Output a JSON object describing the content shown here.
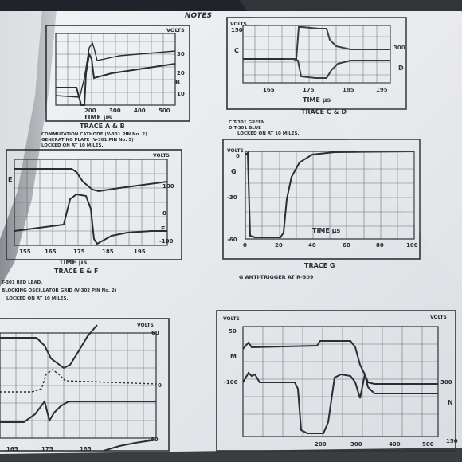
{
  "header_fragment": "NOTES",
  "panel_ab": {
    "units": "VOLTS",
    "y_ticks": [
      "30",
      "20",
      "10"
    ],
    "right_letter": "B",
    "x_ticks": [
      "200",
      "300",
      "400",
      "500"
    ],
    "axis_label": "TIME µs",
    "title": "TRACE A & B",
    "note_lines": [
      "COMMUTATION CATHODE (V-301 PIN No. 2)",
      "GENERATING PLATE (V-301 PIN No. 5)",
      "LOCKED ON AT 10 MILES."
    ]
  },
  "panel_cd": {
    "units": "VOLTS",
    "top_left": "150",
    "left_letter": "C",
    "right_value": "300",
    "right_letter": "D",
    "x_ticks": [
      "165",
      "175",
      "185",
      "195"
    ],
    "axis_label": "TIME µs",
    "title": "TRACE C & D",
    "legend": [
      "C  T-301 GREEN",
      "D  T-301 BLUE",
      "LOCKED ON AT 10 MILES."
    ]
  },
  "panel_ef": {
    "units": "VOLTS",
    "left_letter": "E",
    "right_ticks": [
      "100",
      "0",
      "-100"
    ],
    "right_letter": "F",
    "x_ticks": [
      "155",
      "165",
      "175",
      "185",
      "195"
    ],
    "axis_label": "TIME µs",
    "title": "TRACE E & F",
    "note_lines": [
      "T-301 RED LEAD.",
      "BLOCKING OSCILLATOR GRID (V-302 PIN No. 2)",
      "LOCKED ON AT 10 MILES."
    ]
  },
  "panel_g": {
    "units": "VOLTS",
    "left_letter": "G",
    "y_ticks": [
      "0",
      "-30",
      "-60"
    ],
    "x_ticks": [
      "0",
      "20",
      "40",
      "60",
      "80",
      "100"
    ],
    "axis_label": "TIME µs",
    "title": "TRACE G",
    "legend": "G  ANTI-TRIGGER AT R-309"
  },
  "panel_bl": {
    "units": "VOLTS",
    "right_ticks": [
      "60",
      "0",
      "-60"
    ],
    "x_ticks": [
      "165",
      "175",
      "185"
    ]
  },
  "panel_mn": {
    "units": "VOLTS",
    "y_ticks": [
      "50",
      "-100"
    ],
    "left_letter": "M",
    "right_value": "300",
    "right_letter": "N",
    "right_bottom": "150",
    "x_ticks": [
      "200",
      "300",
      "400",
      "500"
    ]
  }
}
